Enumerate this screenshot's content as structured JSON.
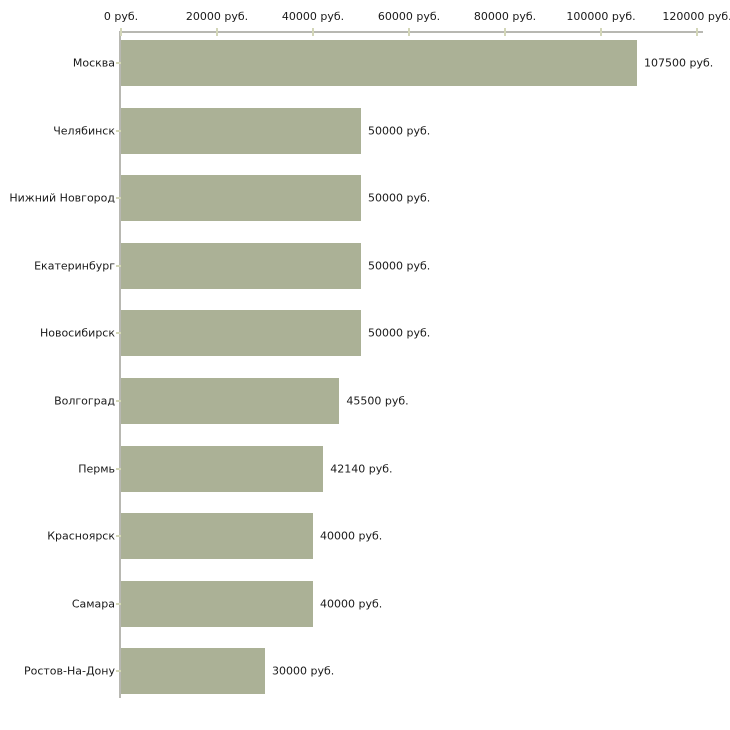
{
  "chart_data": {
    "type": "bar",
    "orientation": "horizontal",
    "title": "",
    "xlabel": "",
    "ylabel": "",
    "unit": "руб.",
    "grid": false,
    "legend": false,
    "bar_color": "#abb196",
    "categories": [
      "Москва",
      "Челябинск",
      "Нижний Новгород",
      "Екатеринбург",
      "Новосибирск",
      "Волгоград",
      "Пермь",
      "Красноярск",
      "Самара",
      "Ростов-На-Дону"
    ],
    "values": [
      107500,
      50000,
      50000,
      50000,
      50000,
      45500,
      42140,
      40000,
      40000,
      30000
    ],
    "value_labels": [
      "107500 руб.",
      "50000 руб.",
      "50000 руб.",
      "50000 руб.",
      "50000 руб.",
      "45500 руб.",
      "42140 руб.",
      "40000 руб.",
      "40000 руб.",
      "30000 руб."
    ],
    "x_axis": {
      "position": "top",
      "range": [
        0,
        120000
      ],
      "tick_values": [
        0,
        20000,
        40000,
        60000,
        80000,
        100000,
        120000
      ],
      "tick_labels": [
        "0 руб.",
        "20000 руб.",
        "40000 руб.",
        "60000 руб.",
        "80000 руб.",
        "100000 руб.",
        "120000 руб."
      ]
    }
  },
  "colors": {
    "bar": "#abb196",
    "axis_line": "#b8b8b2",
    "tick_mark": "#d3d6b8",
    "text": "#1a1a1a",
    "background": "#ffffff"
  }
}
